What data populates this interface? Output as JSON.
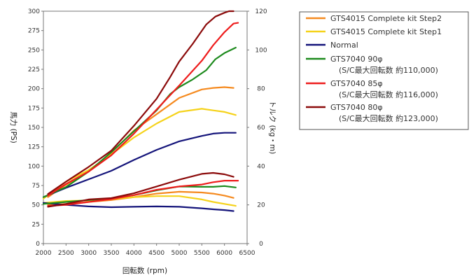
{
  "chart_data": {
    "type": "line",
    "title": "",
    "xlabel": "回転数 (rpm)",
    "ylabel_left": "馬力 (PS)",
    "ylabel_right": "トルク (kg・m)",
    "xlim": [
      2000,
      6500
    ],
    "x_ticks": [
      2000,
      2500,
      3000,
      3500,
      4000,
      4500,
      5000,
      5500,
      6000,
      6500
    ],
    "ylim_left": [
      0,
      300
    ],
    "y_ticks_left": [
      0,
      25,
      50,
      75,
      100,
      125,
      150,
      175,
      200,
      225,
      250,
      275,
      300
    ],
    "ylim_right": [
      0,
      120
    ],
    "y_ticks_right": [
      0,
      20,
      40,
      60,
      80,
      100,
      120
    ],
    "grid": false,
    "legend_position": "top-right",
    "legend": [
      {
        "label": "GTS4015 Complete kit Step2",
        "sublabel": "",
        "color": "#f58a1f"
      },
      {
        "label": "GTS4015 Complete kit Step1",
        "sublabel": "",
        "color": "#f5d21a"
      },
      {
        "label": "Normal",
        "sublabel": "",
        "color": "#14147a"
      },
      {
        "label": "GTS7040 90φ",
        "sublabel": "(S/C最大回転数 約110,000)",
        "color": "#1d8a1d"
      },
      {
        "label": "GTS7040 85φ",
        "sublabel": "(S/C最大回転数 約116,000)",
        "color": "#ee1c1c"
      },
      {
        "label": "GTS7040 80φ",
        "sublabel": "(S/C最大回転数 約123,000)",
        "color": "#8b0a0a"
      }
    ],
    "series": [
      {
        "legend_index": 0,
        "axis": "left",
        "color": "#f58a1f",
        "x": [
          2100,
          2500,
          3000,
          3500,
          4000,
          4500,
          5000,
          5500,
          5750,
          6000,
          6200
        ],
        "y": [
          60,
          76,
          93,
          117,
          146,
          167,
          188,
          199,
          201,
          202,
          201
        ]
      },
      {
        "legend_index": 1,
        "axis": "left",
        "color": "#f5d21a",
        "x": [
          2000,
          2500,
          3000,
          3500,
          4000,
          4500,
          5000,
          5500,
          5750,
          6000,
          6250
        ],
        "y": [
          58,
          80,
          95,
          115,
          137,
          155,
          170,
          174,
          172,
          170,
          166
        ]
      },
      {
        "legend_index": 2,
        "axis": "left",
        "color": "#14147a",
        "x": [
          2000,
          2500,
          3000,
          3500,
          4000,
          4500,
          5000,
          5500,
          5750,
          6000,
          6250
        ],
        "y": [
          60,
          72,
          83,
          94,
          108,
          121,
          132,
          139,
          142,
          143,
          143
        ]
      },
      {
        "legend_index": 3,
        "axis": "left",
        "color": "#1d8a1d",
        "x": [
          2000,
          2500,
          3000,
          3500,
          4000,
          4500,
          4800,
          5000,
          5300,
          5600,
          5800,
          6000,
          6250
        ],
        "y": [
          60,
          73,
          93,
          118,
          145,
          172,
          193,
          202,
          212,
          224,
          238,
          246,
          253
        ]
      },
      {
        "legend_index": 4,
        "axis": "left",
        "color": "#ee1c1c",
        "x": [
          2100,
          2500,
          3000,
          3500,
          4000,
          4500,
          5000,
          5500,
          5750,
          6000,
          6200,
          6300
        ],
        "y": [
          62,
          77,
          93,
          114,
          142,
          173,
          204,
          236,
          256,
          273,
          284,
          285
        ]
      },
      {
        "legend_index": 5,
        "axis": "left",
        "color": "#8b0a0a",
        "x": [
          2100,
          2500,
          3000,
          3500,
          4000,
          4500,
          4800,
          5000,
          5300,
          5600,
          5800,
          6000,
          6100,
          6200
        ],
        "y": [
          64,
          80,
          99,
          120,
          152,
          187,
          215,
          235,
          258,
          283,
          293,
          298,
          300,
          300
        ]
      },
      {
        "legend_index": 0,
        "axis": "right",
        "color": "#f58a1f",
        "x": [
          2100,
          2500,
          3000,
          3500,
          4000,
          4500,
          5000,
          5500,
          5750,
          6000,
          6200
        ],
        "y": [
          20,
          20.5,
          21.5,
          22.5,
          24,
          25.8,
          26.8,
          26.4,
          25.8,
          24.8,
          23.6
        ]
      },
      {
        "legend_index": 1,
        "axis": "right",
        "color": "#f5d21a",
        "x": [
          2000,
          2500,
          3000,
          3500,
          4000,
          4500,
          5000,
          5500,
          5750,
          6000,
          6250
        ],
        "y": [
          21,
          22,
          22.3,
          23,
          24,
          24.5,
          24.5,
          22.8,
          21.5,
          20.5,
          19.5
        ]
      },
      {
        "legend_index": 2,
        "axis": "right",
        "color": "#14147a",
        "x": [
          2000,
          2500,
          3000,
          3500,
          4000,
          4500,
          5000,
          5500,
          5750,
          6000,
          6200
        ],
        "y": [
          21,
          20,
          19.2,
          18.8,
          19,
          19.2,
          19,
          18.2,
          17.7,
          17.3,
          16.8
        ]
      },
      {
        "legend_index": 3,
        "axis": "right",
        "color": "#1d8a1d",
        "x": [
          2000,
          2500,
          3000,
          3500,
          4000,
          4500,
          5000,
          5500,
          5750,
          6000,
          6250
        ],
        "y": [
          20.5,
          21.5,
          22.5,
          23.3,
          25,
          27.5,
          29.5,
          29.3,
          29.3,
          29.7,
          29
        ]
      },
      {
        "legend_index": 4,
        "axis": "right",
        "color": "#ee1c1c",
        "x": [
          2100,
          2500,
          3000,
          3500,
          4000,
          4500,
          5000,
          5500,
          5750,
          6000,
          6300
        ],
        "y": [
          19.5,
          20,
          21.5,
          23,
          25,
          27.8,
          29.5,
          30.5,
          31.7,
          32.5,
          32.5
        ]
      },
      {
        "legend_index": 5,
        "axis": "right",
        "color": "#8b0a0a",
        "x": [
          2100,
          2500,
          3000,
          3500,
          4000,
          4500,
          5000,
          5500,
          5750,
          6000,
          6200
        ],
        "y": [
          19,
          20.5,
          22.8,
          23.5,
          26,
          29.5,
          33,
          36,
          36.5,
          35.8,
          34.5
        ]
      }
    ]
  }
}
